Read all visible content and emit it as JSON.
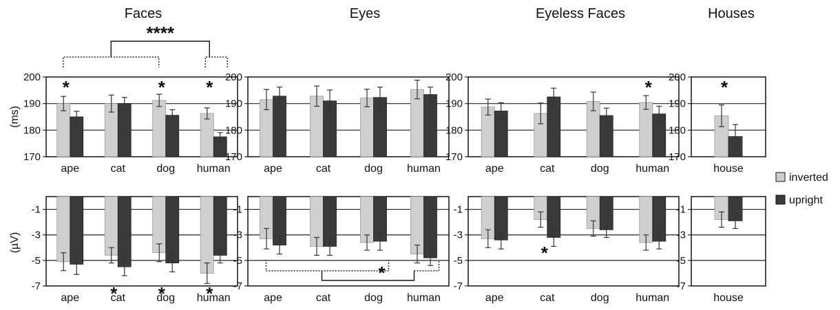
{
  "figure": {
    "ylabel_latency": "(ms)",
    "ylabel_amplitude": "(µV)",
    "legend": [
      {
        "label": "inverted",
        "color": "#cfcfcf"
      },
      {
        "label": "upright",
        "color": "#3a3a3a"
      }
    ],
    "colors": {
      "inverted": "#cfcfcf",
      "upright": "#3a3a3a",
      "axis": "#111111"
    }
  },
  "chart_data": [
    {
      "id": "faces_latency",
      "type": "bar",
      "title": "Faces",
      "categories": [
        "ape",
        "cat",
        "dog",
        "human"
      ],
      "ylim": [
        170,
        200
      ],
      "yticks": [
        170,
        180,
        190,
        200
      ],
      "series": [
        {
          "name": "inverted",
          "values": [
            190,
            190,
            191.2,
            186.3
          ],
          "errors": [
            2.7,
            3.2,
            2.3,
            2.1
          ]
        },
        {
          "name": "upright",
          "values": [
            185,
            190,
            185.6,
            177.5
          ],
          "errors": [
            2.1,
            2.3,
            2.1,
            1.6
          ]
        }
      ],
      "markers": [
        {
          "category": "ape",
          "text": "*"
        },
        {
          "category": "dog",
          "text": "*"
        },
        {
          "category": "human",
          "text": "*"
        }
      ],
      "comparison": {
        "text": "****"
      }
    },
    {
      "id": "eyes_latency",
      "type": "bar",
      "title": "Eyes",
      "categories": [
        "ape",
        "cat",
        "dog",
        "human"
      ],
      "ylim": [
        170,
        200
      ],
      "yticks": [
        170,
        180,
        190,
        200
      ],
      "series": [
        {
          "name": "inverted",
          "values": [
            191.5,
            192.8,
            192.1,
            195.3
          ],
          "errors": [
            3.8,
            3.8,
            3.3,
            3.5
          ]
        },
        {
          "name": "upright",
          "values": [
            192.8,
            191,
            192.3,
            193.4
          ],
          "errors": [
            3.4,
            4.1,
            3.9,
            2.8
          ]
        }
      ],
      "markers": []
    },
    {
      "id": "eyeless_latency",
      "type": "bar",
      "title": "Eyeless Faces",
      "categories": [
        "ape",
        "cat",
        "dog",
        "human"
      ],
      "ylim": [
        170,
        200
      ],
      "yticks": [
        170,
        180,
        190,
        200
      ],
      "series": [
        {
          "name": "inverted",
          "values": [
            188.7,
            186.3,
            190.8,
            190.4
          ],
          "errors": [
            3,
            3.9,
            3.5,
            2.6
          ]
        },
        {
          "name": "upright",
          "values": [
            187.2,
            192.5,
            185.5,
            186.1
          ],
          "errors": [
            3.1,
            3.3,
            2.8,
            2.9
          ]
        }
      ],
      "markers": [
        {
          "category": "human",
          "text": "*"
        }
      ]
    },
    {
      "id": "houses_latency",
      "type": "bar",
      "title": "Houses",
      "categories": [
        "house"
      ],
      "ylim": [
        170,
        200
      ],
      "yticks": [
        170,
        180,
        190,
        200
      ],
      "series": [
        {
          "name": "inverted",
          "values": [
            185.4
          ],
          "errors": [
            4.1
          ]
        },
        {
          "name": "upright",
          "values": [
            177.6
          ],
          "errors": [
            4.5
          ]
        }
      ],
      "markers": [
        {
          "category": "house",
          "text": "*"
        }
      ]
    },
    {
      "id": "faces_amplitude",
      "type": "bar",
      "title": "",
      "categories": [
        "ape",
        "cat",
        "dog",
        "human"
      ],
      "ylim": [
        -7,
        0
      ],
      "yticks": [
        -1,
        -3,
        -5,
        -7
      ],
      "series": [
        {
          "name": "inverted",
          "values": [
            -5.1,
            -4.6,
            -4.4,
            -6
          ],
          "errors": [
            0.7,
            0.6,
            0.7,
            0.8
          ]
        },
        {
          "name": "upright",
          "values": [
            -5.3,
            -5.5,
            -5.2,
            -4.6
          ],
          "errors": [
            0.8,
            0.7,
            0.7,
            0.6
          ]
        }
      ],
      "markers": [
        {
          "category": "cat",
          "text": "*"
        },
        {
          "category": "dog",
          "text": "*"
        },
        {
          "category": "human",
          "text": "*"
        }
      ]
    },
    {
      "id": "eyes_amplitude",
      "type": "bar",
      "title": "",
      "categories": [
        "ape",
        "cat",
        "dog",
        "human"
      ],
      "ylim": [
        -7,
        0
      ],
      "yticks": [
        -1,
        -3,
        -5,
        -7
      ],
      "series": [
        {
          "name": "inverted",
          "values": [
            -3.3,
            -3.9,
            -3.6,
            -4.5
          ],
          "errors": [
            0.8,
            0.7,
            0.6,
            0.7
          ]
        },
        {
          "name": "upright",
          "values": [
            -3.8,
            -3.9,
            -3.5,
            -4.8
          ],
          "errors": [
            0.7,
            0.7,
            0.7,
            0.6
          ]
        }
      ],
      "markers": [],
      "comparison": {
        "text": "*"
      }
    },
    {
      "id": "eyeless_amplitude",
      "type": "bar",
      "title": "",
      "categories": [
        "ape",
        "cat",
        "dog",
        "human"
      ],
      "ylim": [
        -7,
        0
      ],
      "yticks": [
        -1,
        -3,
        -5,
        -7
      ],
      "series": [
        {
          "name": "inverted",
          "values": [
            -3.3,
            -1.8,
            -2.5,
            -3.6
          ],
          "errors": [
            0.7,
            0.6,
            0.6,
            0.6
          ]
        },
        {
          "name": "upright",
          "values": [
            -3.4,
            -3.2,
            -2.6,
            -3.5
          ],
          "errors": [
            0.7,
            0.7,
            0.6,
            0.6
          ]
        }
      ],
      "markers": [],
      "annotations": [
        {
          "text": "*",
          "category": "cat",
          "y": -5
        }
      ]
    },
    {
      "id": "houses_amplitude",
      "type": "bar",
      "title": "",
      "categories": [
        "house"
      ],
      "ylim": [
        -7,
        0
      ],
      "yticks": [
        -1,
        -3,
        -5,
        -7
      ],
      "series": [
        {
          "name": "inverted",
          "values": [
            -1.8
          ],
          "errors": [
            0.6
          ]
        },
        {
          "name": "upright",
          "values": [
            -1.9
          ],
          "errors": [
            0.6
          ]
        }
      ],
      "markers": []
    }
  ]
}
